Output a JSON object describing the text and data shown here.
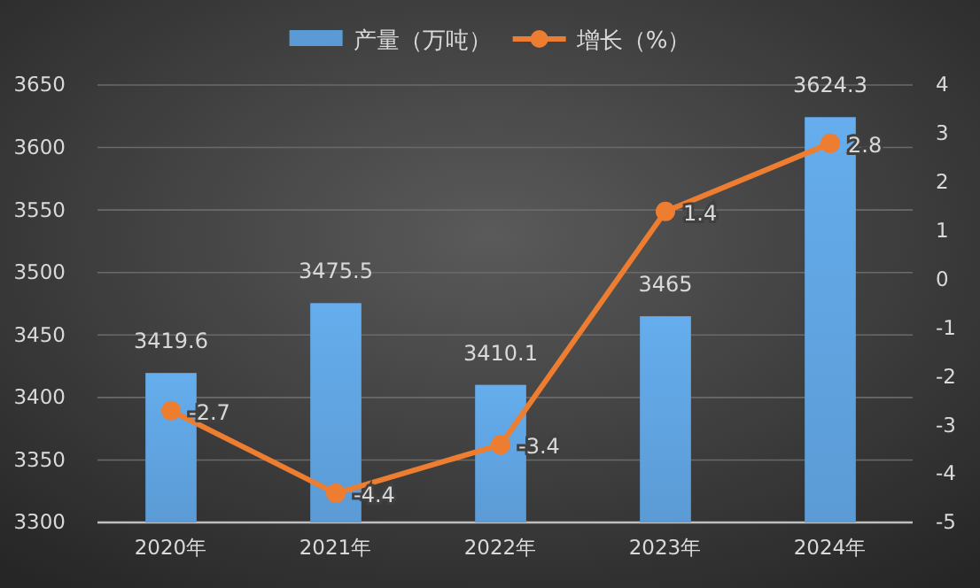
{
  "chart_data": {
    "type": "bar",
    "categories": [
      "2020年",
      "2021年",
      "2022年",
      "2023年",
      "2024年"
    ],
    "series": [
      {
        "name": "产量（万吨）",
        "color": "#5b9bd5",
        "values": [
          3419.6,
          3475.5,
          3410.1,
          3465,
          3624.3
        ]
      },
      {
        "name": "增长（%）",
        "type": "line",
        "axis": "y2",
        "color": "#ed7d31",
        "values": [
          -2.7,
          -4.4,
          -3.4,
          1.4,
          2.8
        ]
      }
    ],
    "ylim": [
      3300,
      3650
    ],
    "yticks": [
      3300,
      3350,
      3400,
      3450,
      3500,
      3550,
      3600,
      3650
    ],
    "y2lim": [
      -5,
      4
    ],
    "y2ticks": [
      -5,
      -4,
      -3,
      -2,
      -1,
      0,
      1,
      2,
      3,
      4
    ],
    "data_labels": true,
    "grid": "y",
    "legend": "top",
    "marker": "circle",
    "line_style": "solid"
  }
}
